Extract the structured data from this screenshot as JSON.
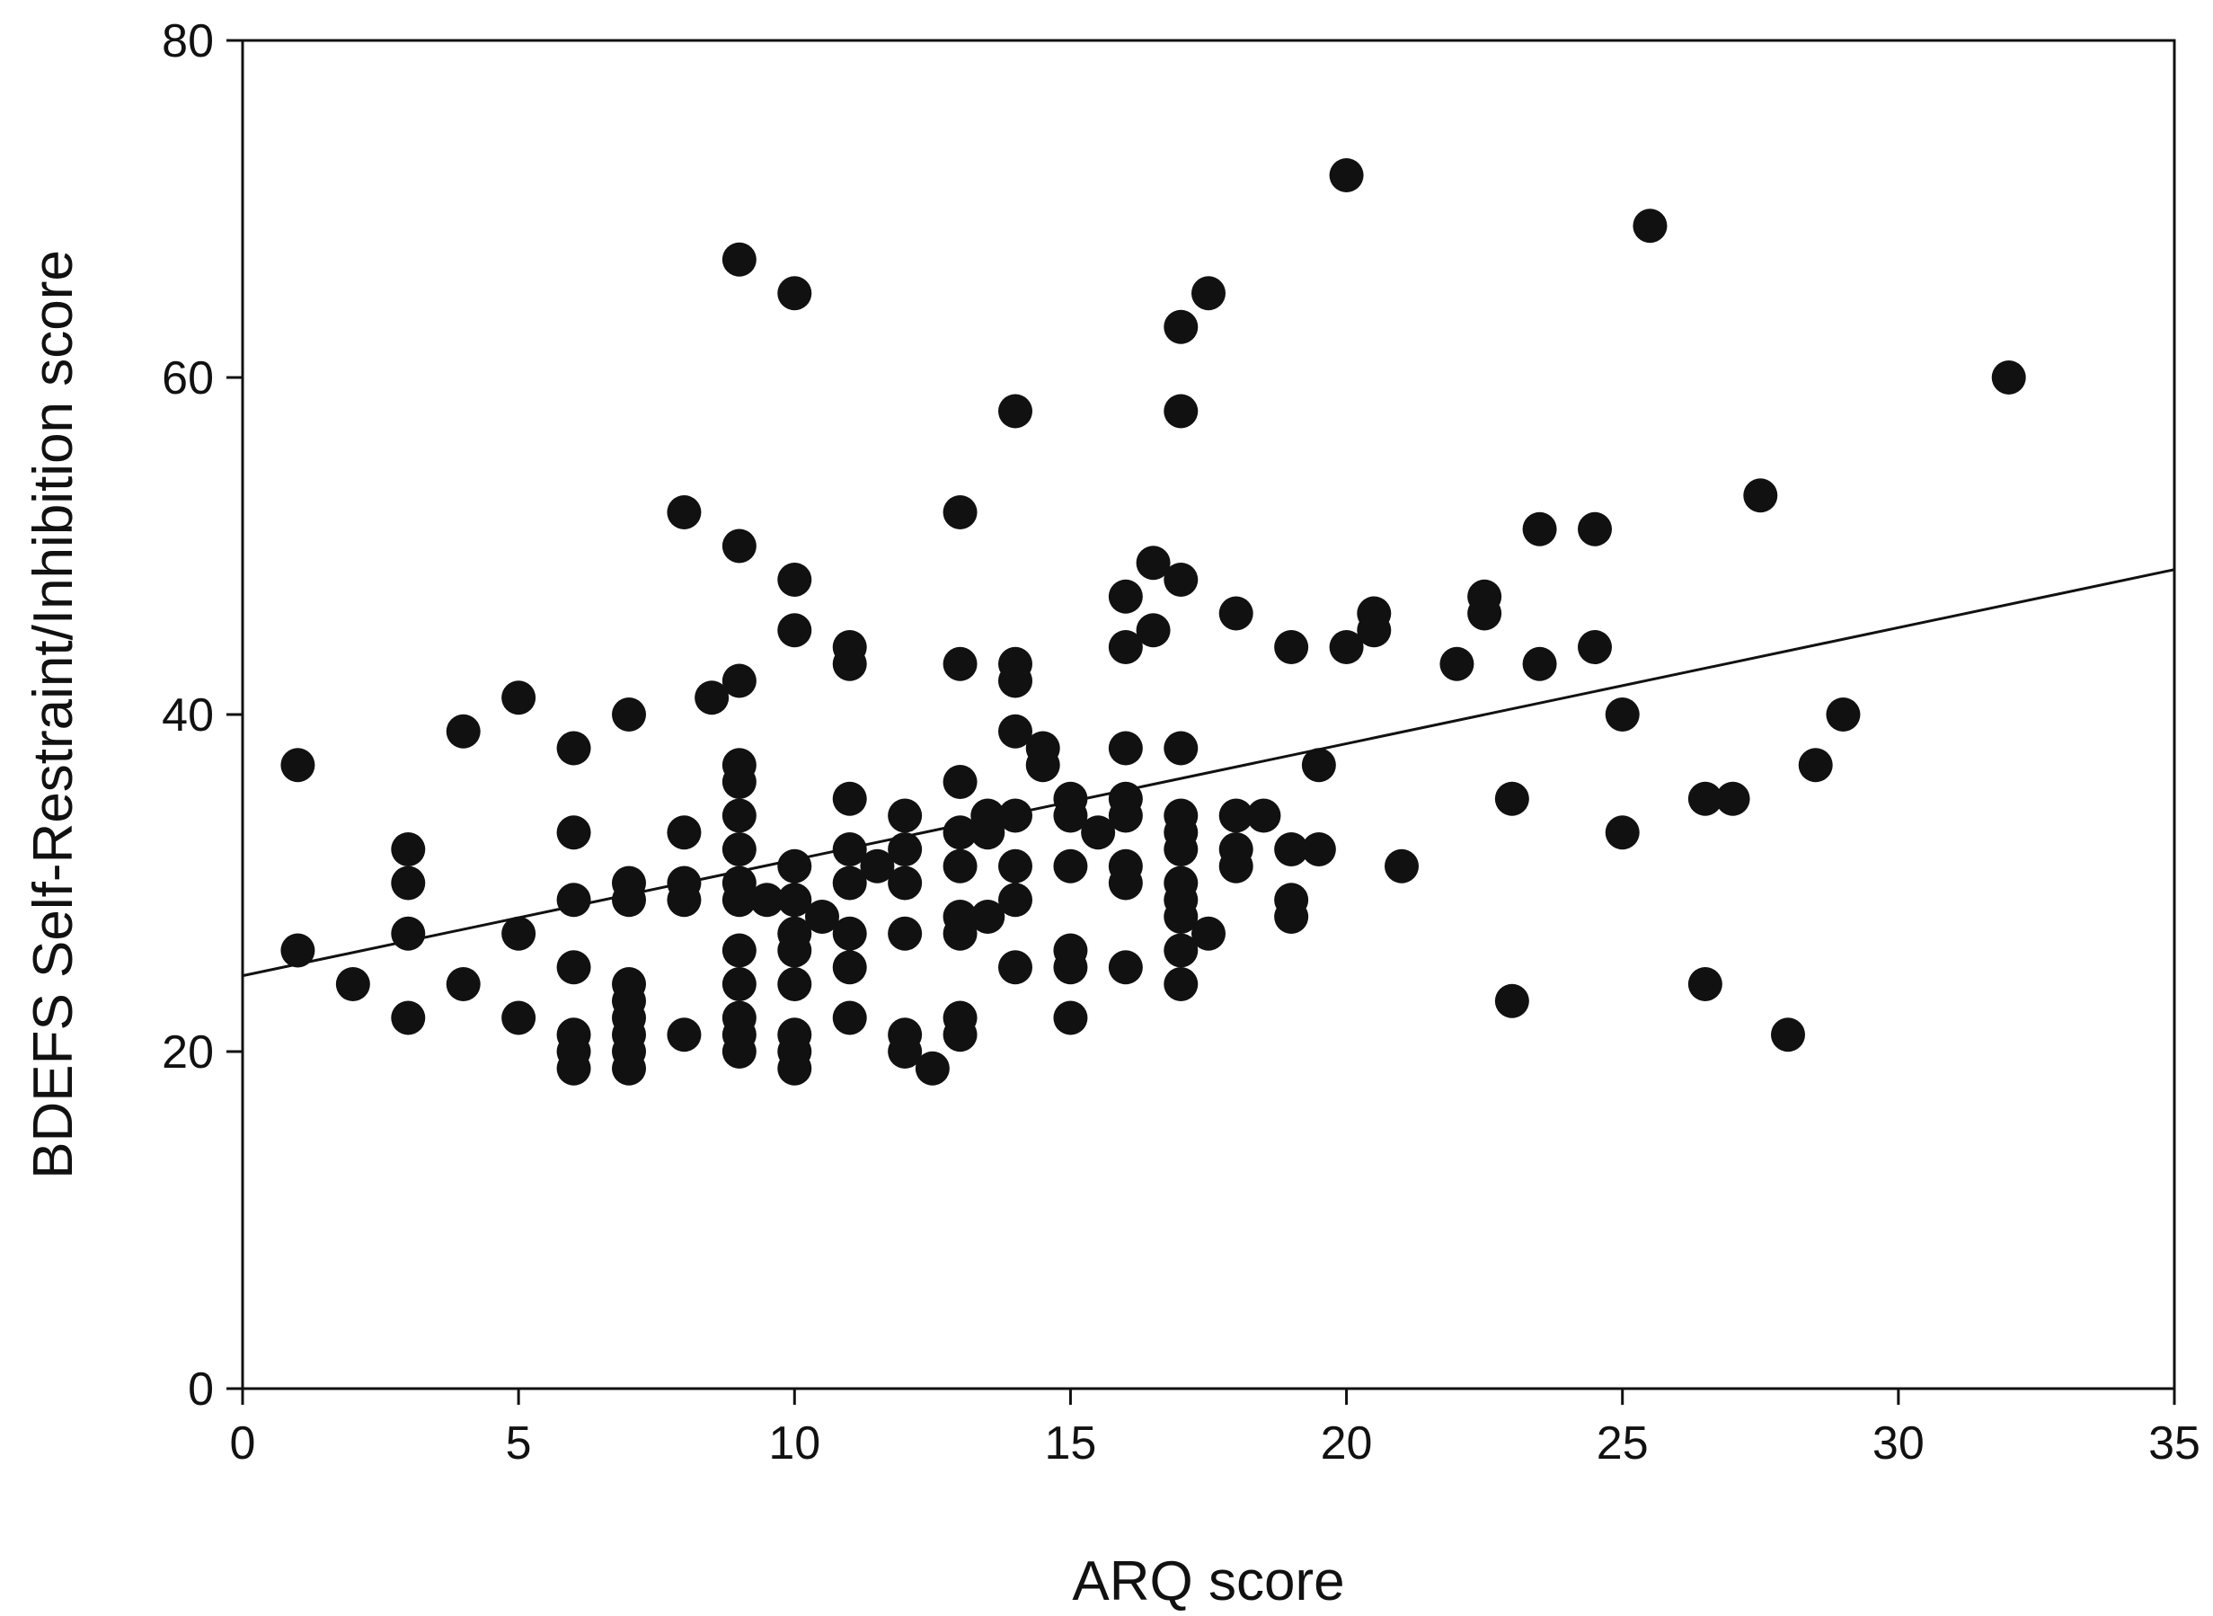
{
  "chart_data": {
    "type": "scatter",
    "xlabel": "ARQ score",
    "ylabel": "BDEFS Self-Restraint/Inhibition score",
    "xlim": [
      0,
      35
    ],
    "ylim": [
      0,
      80
    ],
    "x_ticks": [
      "0",
      "5",
      "10",
      "15",
      "20",
      "25",
      "30",
      "35"
    ],
    "y_ticks": [
      "0",
      "20",
      "40",
      "60",
      "80"
    ],
    "grid": false,
    "marker_color": "#111111",
    "line_color": "#111111",
    "regression_line": {
      "x": [
        0,
        35
      ],
      "y": [
        24.5,
        48.6
      ]
    },
    "points": [
      [
        1,
        37
      ],
      [
        1,
        26
      ],
      [
        2,
        24
      ],
      [
        3,
        32
      ],
      [
        3,
        30
      ],
      [
        3,
        27
      ],
      [
        3,
        22
      ],
      [
        4,
        39
      ],
      [
        4,
        24
      ],
      [
        5,
        41
      ],
      [
        5,
        27
      ],
      [
        5,
        22
      ],
      [
        6,
        38
      ],
      [
        6,
        33
      ],
      [
        6,
        29
      ],
      [
        6,
        25
      ],
      [
        6,
        21
      ],
      [
        6,
        20
      ],
      [
        6,
        19
      ],
      [
        7,
        40
      ],
      [
        7,
        30
      ],
      [
        7,
        29
      ],
      [
        7,
        24
      ],
      [
        7,
        23
      ],
      [
        7,
        22
      ],
      [
        7,
        21
      ],
      [
        7,
        20
      ],
      [
        7,
        19
      ],
      [
        8,
        52
      ],
      [
        8,
        33
      ],
      [
        8,
        30
      ],
      [
        8,
        29
      ],
      [
        8,
        21
      ],
      [
        8.5,
        41
      ],
      [
        9,
        67
      ],
      [
        9,
        50
      ],
      [
        9,
        42
      ],
      [
        9,
        37
      ],
      [
        9,
        36
      ],
      [
        9,
        34
      ],
      [
        9,
        32
      ],
      [
        9,
        30
      ],
      [
        9,
        29
      ],
      [
        9,
        26
      ],
      [
        9,
        24
      ],
      [
        9,
        22
      ],
      [
        9,
        21
      ],
      [
        9,
        20
      ],
      [
        9.5,
        29
      ],
      [
        10,
        65
      ],
      [
        10,
        48
      ],
      [
        10,
        45
      ],
      [
        10,
        31
      ],
      [
        10,
        29
      ],
      [
        10,
        27
      ],
      [
        10,
        26
      ],
      [
        10,
        24
      ],
      [
        10,
        21
      ],
      [
        10,
        20
      ],
      [
        10,
        19
      ],
      [
        10.5,
        28
      ],
      [
        11,
        44
      ],
      [
        11,
        43
      ],
      [
        11,
        35
      ],
      [
        11,
        32
      ],
      [
        11,
        30
      ],
      [
        11,
        27
      ],
      [
        11,
        25
      ],
      [
        11,
        22
      ],
      [
        11.5,
        31
      ],
      [
        12,
        34
      ],
      [
        12,
        32
      ],
      [
        12,
        30
      ],
      [
        12,
        27
      ],
      [
        12,
        21
      ],
      [
        12,
        20
      ],
      [
        12.5,
        19
      ],
      [
        13,
        52
      ],
      [
        13,
        43
      ],
      [
        13,
        36
      ],
      [
        13,
        33
      ],
      [
        13,
        31
      ],
      [
        13,
        28
      ],
      [
        13,
        27
      ],
      [
        13,
        22
      ],
      [
        13,
        21
      ],
      [
        13.5,
        34
      ],
      [
        13.5,
        33
      ],
      [
        13.5,
        28
      ],
      [
        14,
        58
      ],
      [
        14,
        43
      ],
      [
        14,
        42
      ],
      [
        14,
        39
      ],
      [
        14,
        34
      ],
      [
        14,
        31
      ],
      [
        14,
        29
      ],
      [
        14,
        25
      ],
      [
        14.5,
        38
      ],
      [
        14.5,
        37
      ],
      [
        15,
        35
      ],
      [
        15,
        34
      ],
      [
        15,
        31
      ],
      [
        15,
        26
      ],
      [
        15,
        25
      ],
      [
        15,
        22
      ],
      [
        15.5,
        33
      ],
      [
        16,
        47
      ],
      [
        16,
        44
      ],
      [
        16,
        38
      ],
      [
        16,
        35
      ],
      [
        16,
        34
      ],
      [
        16,
        31
      ],
      [
        16,
        30
      ],
      [
        16,
        25
      ],
      [
        16.5,
        49
      ],
      [
        16.5,
        45
      ],
      [
        17,
        63
      ],
      [
        17,
        58
      ],
      [
        17,
        48
      ],
      [
        17,
        38
      ],
      [
        17,
        34
      ],
      [
        17,
        33
      ],
      [
        17,
        32
      ],
      [
        17,
        30
      ],
      [
        17,
        29
      ],
      [
        17,
        28
      ],
      [
        17,
        26
      ],
      [
        17,
        24
      ],
      [
        17.5,
        65
      ],
      [
        17.5,
        27
      ],
      [
        18,
        46
      ],
      [
        18,
        34
      ],
      [
        18,
        32
      ],
      [
        18,
        31
      ],
      [
        18.5,
        34
      ],
      [
        19,
        44
      ],
      [
        19,
        32
      ],
      [
        19,
        29
      ],
      [
        19,
        28
      ],
      [
        19.5,
        37
      ],
      [
        19.5,
        32
      ],
      [
        20,
        72
      ],
      [
        20,
        44
      ],
      [
        20.5,
        46
      ],
      [
        20.5,
        45
      ],
      [
        21,
        31
      ],
      [
        22,
        43
      ],
      [
        22.5,
        47
      ],
      [
        22.5,
        46
      ],
      [
        23,
        35
      ],
      [
        23,
        23
      ],
      [
        23.5,
        51
      ],
      [
        23.5,
        43
      ],
      [
        24.5,
        51
      ],
      [
        24.5,
        44
      ],
      [
        25,
        40
      ],
      [
        25,
        33
      ],
      [
        25.5,
        69
      ],
      [
        26.5,
        35
      ],
      [
        26.5,
        24
      ],
      [
        27,
        35
      ],
      [
        27.5,
        53
      ],
      [
        28,
        21
      ],
      [
        28.5,
        37
      ],
      [
        29,
        40
      ],
      [
        32,
        60
      ]
    ]
  }
}
